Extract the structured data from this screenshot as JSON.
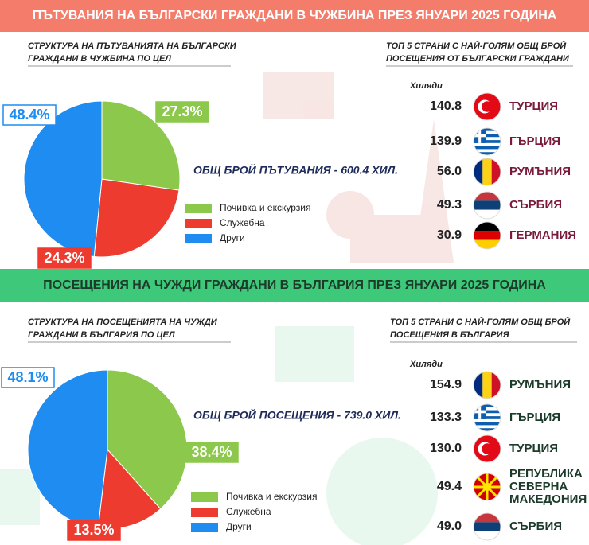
{
  "sections": [
    {
      "title": "ПЪТУВАНИЯ НА БЪЛГАРСКИ ГРАЖДАНИ В ЧУЖБИНА ПРЕЗ ЯНУАРИ 2025 ГОДИНА",
      "total": "ОБЩ БРОЙ ПЪТУВАНИЯ - 600.4 ХИЛ.",
      "top": {
        "title": "ТОП 5 СТРАНИ С НАЙ-ГОЛЯМ ОБЩ БРОЙ ПОСЕЩЕНИЯ ОТ БЪЛГАРСКИ ГРАЖДАНИ",
        "unit": "Хиляди",
        "countries": [
          "ТУРЦИЯ",
          "ГЪРЦИЯ",
          "РУМЪНИЯ",
          "СЪРБИЯ",
          "ГЕРМАНИЯ"
        ],
        "values": [
          "140.8",
          "139.9",
          "56.0",
          "49.3",
          "30.9"
        ]
      }
    },
    {
      "title": "ПОСЕЩЕНИЯ НА ЧУЖДИ ГРАЖДАНИ В БЪЛГАРИЯ ПРЕЗ ЯНУАРИ 2025 ГОДИНА",
      "total": "ОБЩ БРОЙ ПОСЕЩЕНИЯ - 739.0 ХИЛ.",
      "top": {
        "title": "ТОП 5 СТРАНИ С НАЙ-ГОЛЯМ ОБЩ БРОЙ ПОСЕЩЕНИЯ В БЪЛГАРИЯ",
        "unit": "Хиляди",
        "countries": [
          "РУМЪНИЯ",
          "ГЪРЦИЯ",
          "ТУРЦИЯ",
          "РЕПУБЛИКА СЕВЕРНА МАКЕДОНИЯ",
          "СЪРБИЯ"
        ],
        "values": [
          "154.9",
          "133.3",
          "130.0",
          "49.4",
          "49.0"
        ]
      }
    }
  ],
  "chart_data": [
    {
      "type": "pie",
      "title": "СТРУКТУРА НА ПЪТУВАНИЯТА НА БЪЛГАРСКИ ГРАЖДАНИ В ЧУЖБИНА ПО ЦЕЛ",
      "categories": [
        "Почивка и екскурзия",
        "Служебна",
        "Други"
      ],
      "values": [
        27.3,
        24.3,
        48.4
      ],
      "value_labels": [
        "27.3%",
        "24.3%",
        "48.4%"
      ],
      "colors": [
        "#8cc84b",
        "#ee3b2f",
        "#1e8cf0"
      ]
    },
    {
      "type": "pie",
      "title": "СТРУКТУРА НА ПОСЕЩЕНИЯТА НА ЧУЖДИ ГРАЖДАНИ В БЪЛГАРИЯ ПО ЦЕЛ",
      "categories": [
        "Почивка и екскурзия",
        "Служебна",
        "Други"
      ],
      "values": [
        38.4,
        13.5,
        48.1
      ],
      "value_labels": [
        "38.4%",
        "13.5%",
        "48.1%"
      ],
      "colors": [
        "#8cc84b",
        "#ee3b2f",
        "#1e8cf0"
      ]
    }
  ]
}
